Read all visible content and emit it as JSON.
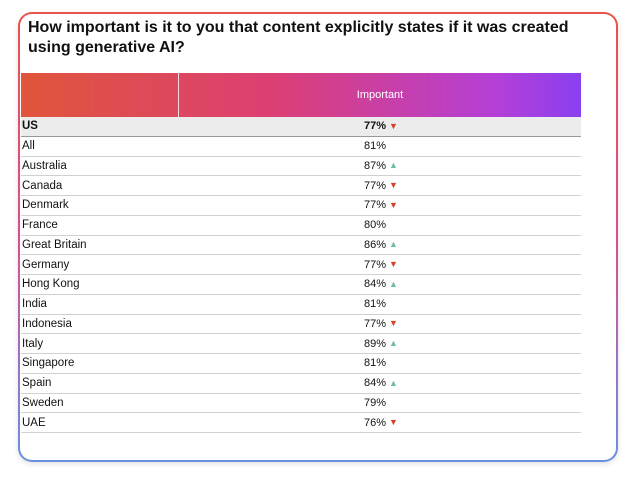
{
  "title": "How important is it to you that content explicitly states if it was created using generative AI?",
  "colors": {
    "up_arrow": "#6fbf9f",
    "down_arrow": "#d6402e",
    "header_gradient": [
      "#e0553b",
      "#dc3f74",
      "#b43fd7",
      "#8a3ff0"
    ]
  },
  "chart_data": {
    "type": "table",
    "title": "How important is it to you that content explicitly states if it was created using generative AI?",
    "columns": [
      "",
      "Important"
    ],
    "rows": [
      {
        "country": "US",
        "value": "77%",
        "trend": "down"
      },
      {
        "country": "All",
        "value": "81%",
        "trend": "none"
      },
      {
        "country": "Australia",
        "value": "87%",
        "trend": "up"
      },
      {
        "country": "Canada",
        "value": "77%",
        "trend": "down"
      },
      {
        "country": "Denmark",
        "value": "77%",
        "trend": "down"
      },
      {
        "country": "France",
        "value": "80%",
        "trend": "none"
      },
      {
        "country": "Great Britain",
        "value": "86%",
        "trend": "up"
      },
      {
        "country": "Germany",
        "value": "77%",
        "trend": "down"
      },
      {
        "country": "Hong Kong",
        "value": "84%",
        "trend": "up"
      },
      {
        "country": "India",
        "value": "81%",
        "trend": "none"
      },
      {
        "country": "Indonesia",
        "value": "77%",
        "trend": "down"
      },
      {
        "country": "Italy",
        "value": "89%",
        "trend": "up"
      },
      {
        "country": "Singapore",
        "value": "81%",
        "trend": "none"
      },
      {
        "country": "Spain",
        "value": "84%",
        "trend": "up"
      },
      {
        "country": "Sweden",
        "value": "79%",
        "trend": "none"
      },
      {
        "country": "UAE",
        "value": "76%",
        "trend": "down"
      }
    ]
  }
}
